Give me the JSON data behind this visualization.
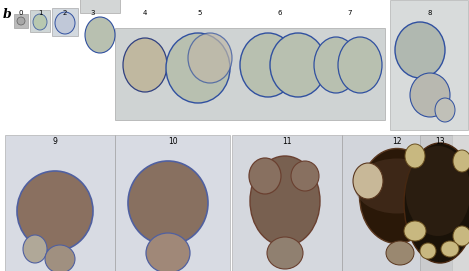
{
  "bg_color": "#f0f0f0",
  "fig_bg": "#ffffff",
  "row1_labels": [
    "0",
    "1",
    "2",
    "3",
    "4",
    "5",
    "6",
    "7",
    "8"
  ],
  "row2_labels": [
    "9",
    "10",
    "11",
    "12",
    "13"
  ],
  "label_b": "b",
  "row1_panel_bg": "#cccccc",
  "row2_panel_bg": "#c8c8d8",
  "organoid_colors_early": [
    "#aaaaaa",
    "#b8c8b8",
    "#c0c8d0",
    "#b0b8b0",
    "#b8b8b0"
  ],
  "organoid_colors_late": [
    "#7a6850",
    "#8a7060",
    "#604030",
    "#3a2820",
    "#6a5840"
  ],
  "border_color_early": "#3050a0",
  "border_color_late": "#5a3020",
  "text_color": "#000000",
  "panel_edgecolor": "#aaaaaa"
}
